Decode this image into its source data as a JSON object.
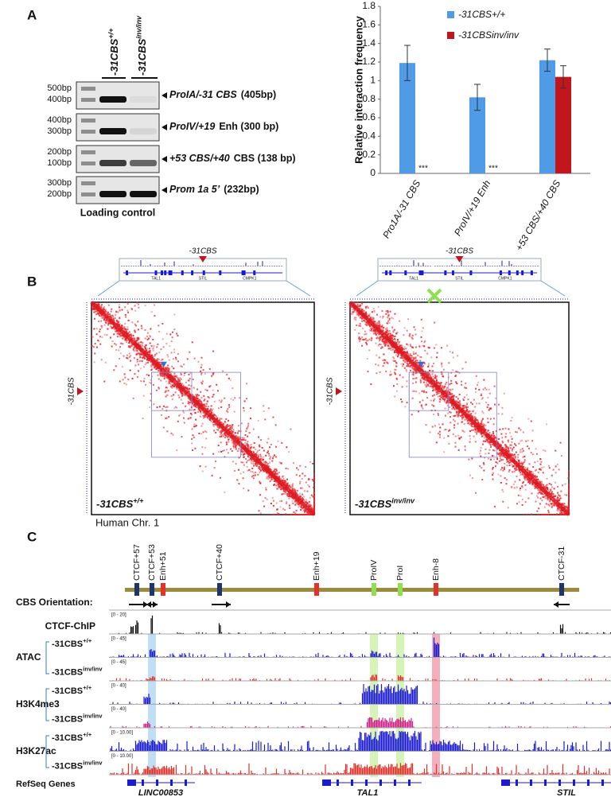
{
  "panel_a": {
    "label": "A",
    "lanes": [
      {
        "base": "-31CBS",
        "sup": "+/+"
      },
      {
        "base": "-31CBS",
        "sup": "inv/inv"
      }
    ],
    "gels": [
      {
        "markers": [
          "500bp",
          "400bp"
        ],
        "target": "ProIA/-31 CBS",
        "detail": "(405bp)"
      },
      {
        "markers": [
          "400bp",
          "300bp"
        ],
        "target": "ProIV/+19",
        "detail": "Enh (300 bp)"
      },
      {
        "markers": [
          "200bp",
          "100bp"
        ],
        "target": "+53 CBS/+40",
        "detail": "CBS (138 bp)"
      },
      {
        "markers": [
          "300bp",
          "200bp"
        ],
        "target": "Prom 1a 5’",
        "detail": "(232bp)"
      }
    ],
    "caption": "Loading control"
  },
  "chart_data": {
    "type": "bar",
    "y_label": "Relative interaction frequency",
    "categories": [
      "Pro1A/-31 CBS",
      "ProIV/+19 Enh",
      "+53 CBS/+40 CBS"
    ],
    "series": [
      {
        "name": "-31CBS+/+",
        "color": "#4f9be8",
        "values": [
          1.19,
          0.82,
          1.22
        ],
        "errors": [
          0.19,
          0.14,
          0.12
        ]
      },
      {
        "name": "-31CBSinv/inv",
        "color": "#c0161c",
        "values": [
          0,
          0,
          1.04
        ],
        "errors": [
          0,
          0,
          0.12
        ]
      }
    ],
    "significance": [
      "***",
      "***",
      null
    ],
    "ylim": [
      0,
      1.8
    ],
    "yticks": [
      0,
      0.2,
      0.4,
      0.6,
      0.8,
      1,
      1.2,
      1.4,
      1.6,
      1.8
    ],
    "grid": false
  },
  "panel_b": {
    "label": "B",
    "maps": [
      {
        "genotype": {
          "base": "-31CBS",
          "sup": "+/+"
        },
        "marker": "-31CBS",
        "inset_marker": "-31CBS"
      },
      {
        "genotype": {
          "base": "-31CBS",
          "sup": "inv/inv"
        },
        "marker": "-31CBS",
        "inset_marker": "-31CBS"
      }
    ],
    "inset_genes": [
      "TAL1",
      "STIL",
      "CMPK1"
    ],
    "x_label": "Human Chr. 1"
  },
  "panel_c": {
    "label": "C",
    "kind_colors": {
      "ctcf": "#1c3570",
      "enh": "#e8302a",
      "pro": "#8fe050"
    },
    "elements": [
      {
        "name": "CTCF+57",
        "kind": "ctcf"
      },
      {
        "name": "CTCF+53",
        "kind": "ctcf"
      },
      {
        "name": "Enh+51",
        "kind": "enh"
      },
      {
        "name": "CTCF+40",
        "kind": "ctcf"
      },
      {
        "name": "Enh+19",
        "kind": "enh"
      },
      {
        "name": "ProIV",
        "kind": "pro"
      },
      {
        "name": "ProI",
        "kind": "pro"
      },
      {
        "name": "Enh-8",
        "kind": "enh"
      },
      {
        "name": "CTCF-31",
        "kind": "ctcf"
      }
    ],
    "orientation_label": "CBS Orientation:",
    "chip": {
      "name": "CTCF-ChIP",
      "scale": "[0 - 20]",
      "color": "#111111"
    },
    "groups": [
      {
        "name": "ATAC",
        "tracks": [
          {
            "sample": {
              "base": "-31CBS",
              "sup": "+/+"
            },
            "scale": "[0 - 45]",
            "color": "#1b1bd0"
          },
          {
            "sample": {
              "base": "-31CBS",
              "sup": "inv/inv"
            },
            "scale": "[0 - 45]",
            "color": "#e0302a"
          }
        ]
      },
      {
        "name": "H3K4me3",
        "tracks": [
          {
            "sample": {
              "base": "-31CBS",
              "sup": "+/+"
            },
            "scale": "[0 - 40]",
            "color": "#1b1bd0"
          },
          {
            "sample": {
              "base": "-31CBS",
              "sup": "inv/inv"
            },
            "scale": "[0 - 40]",
            "color": "#d0208a"
          }
        ]
      },
      {
        "name": "H3K27ac",
        "tracks": [
          {
            "sample": {
              "base": "-31CBS",
              "sup": "+/+"
            },
            "scale": "[0 - 10.00]",
            "color": "#1b1bd0"
          },
          {
            "sample": {
              "base": "-31CBS",
              "sup": "inv/inv"
            },
            "scale": "[0 - 10.00]",
            "color": "#e0302a"
          }
        ]
      }
    ],
    "genes_label": "RefSeq Genes",
    "genes": [
      "LINC00853",
      "TAL1",
      "STIL"
    ]
  }
}
